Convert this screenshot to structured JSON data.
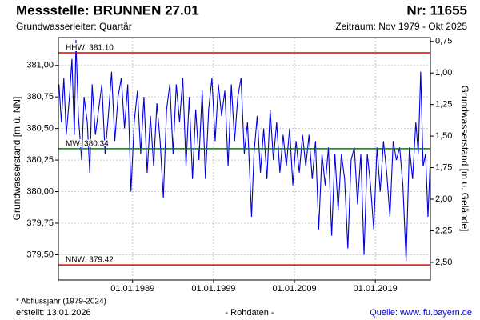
{
  "chart_data": {
    "type": "line",
    "title": "Messstelle: BRUNNEN 27.01",
    "number": "Nr: 11655",
    "subtitle": "Grundwasserleiter: Quartär",
    "period": "Zeitraum: Nov 1979 - Okt 2025",
    "ylabel": "Grundwasserstand [m ü. NN]",
    "y2label": "Grundwasserstand [m u. Gelände]",
    "footnote": "* Abflussjahr (1979-2024)",
    "created": "erstellt:  13.01.2026",
    "data_note": "- Rohdaten -",
    "source": "Quelle: www.lfu.bayern.de",
    "grid": true,
    "y2_inverted": true,
    "xlim": [
      1979.83,
      2025.8
    ],
    "xticks": [
      {
        "value": 1989,
        "label": "01.01.1989"
      },
      {
        "value": 1999,
        "label": "01.01.1999"
      },
      {
        "value": 2009,
        "label": "01.01.2009"
      },
      {
        "value": 2019,
        "label": "01.01.2019"
      }
    ],
    "ylim": [
      379.3,
      381.22
    ],
    "yticks": [
      {
        "value": 379.5,
        "label": "379,50"
      },
      {
        "value": 379.75,
        "label": "379,75"
      },
      {
        "value": 380,
        "label": "380,00"
      },
      {
        "value": 380.25,
        "label": "380,25"
      },
      {
        "value": 380.5,
        "label": "380,50"
      },
      {
        "value": 380.75,
        "label": "380,75"
      },
      {
        "value": 381,
        "label": "381,00"
      }
    ],
    "y2lim": [
      0.72,
      2.64
    ],
    "y2ticks": [
      {
        "value": 0.75,
        "label": "0,75"
      },
      {
        "value": 1,
        "label": "1,00"
      },
      {
        "value": 1.25,
        "label": "1,25"
      },
      {
        "value": 1.5,
        "label": "1,50"
      },
      {
        "value": 1.75,
        "label": "1,75"
      },
      {
        "value": 2,
        "label": "2,00"
      },
      {
        "value": 2.25,
        "label": "2,25"
      },
      {
        "value": 2.5,
        "label": "2,50"
      }
    ],
    "reference_lines": [
      {
        "label": "HHW: 381.10",
        "value": 381.1,
        "color": "#e00000"
      },
      {
        "label": "MW: 380.34",
        "value": 380.34,
        "color": "#008000"
      },
      {
        "label": "NNW: 379.42",
        "value": 379.42,
        "color": "#e00000"
      }
    ],
    "series": [
      {
        "color": "#0000dd",
        "x": [
          1979.9,
          1980.2,
          1980.5,
          1980.8,
          1981.2,
          1981.5,
          1981.8,
          1982.0,
          1982.3,
          1982.7,
          1983.0,
          1983.4,
          1983.7,
          1984.0,
          1984.4,
          1984.8,
          1985.2,
          1985.6,
          1986.0,
          1986.4,
          1986.8,
          1987.2,
          1987.6,
          1988.0,
          1988.4,
          1988.8,
          1989.2,
          1989.6,
          1990.0,
          1990.4,
          1990.8,
          1991.2,
          1991.6,
          1992.0,
          1992.4,
          1992.8,
          1993.2,
          1993.6,
          1994.0,
          1994.4,
          1994.8,
          1995.2,
          1995.6,
          1996.0,
          1996.4,
          1996.8,
          1997.2,
          1997.6,
          1998.0,
          1998.4,
          1998.8,
          1999.2,
          1999.6,
          2000.0,
          2000.4,
          2000.8,
          2001.2,
          2001.6,
          2002.0,
          2002.4,
          2002.8,
          2003.2,
          2003.7,
          2004.0,
          2004.4,
          2004.8,
          2005.2,
          2005.6,
          2006.0,
          2006.4,
          2006.8,
          2007.2,
          2007.6,
          2008.0,
          2008.4,
          2008.8,
          2009.2,
          2009.6,
          2010.0,
          2010.4,
          2010.8,
          2011.2,
          2011.6,
          2012.0,
          2012.4,
          2012.8,
          2013.2,
          2013.6,
          2014.0,
          2014.4,
          2014.8,
          2015.2,
          2015.6,
          2016.0,
          2016.4,
          2016.8,
          2017.2,
          2017.6,
          2018.0,
          2018.4,
          2018.8,
          2019.2,
          2019.6,
          2020.0,
          2020.4,
          2020.8,
          2021.2,
          2021.6,
          2022.0,
          2022.4,
          2022.8,
          2023.2,
          2023.6,
          2024.0,
          2024.3,
          2024.6,
          2024.9,
          2025.2,
          2025.5,
          2025.75
        ],
        "values": [
          380.85,
          380.55,
          380.9,
          380.45,
          380.75,
          381.05,
          380.45,
          381.2,
          380.6,
          380.25,
          380.75,
          380.55,
          380.15,
          380.85,
          380.45,
          380.65,
          380.85,
          380.3,
          380.6,
          380.95,
          380.4,
          380.75,
          380.9,
          380.5,
          380.85,
          380.0,
          380.55,
          380.8,
          380.3,
          380.75,
          380.15,
          380.6,
          380.2,
          380.7,
          380.4,
          379.95,
          380.65,
          380.85,
          380.3,
          380.85,
          380.55,
          380.9,
          380.2,
          380.75,
          380.1,
          380.65,
          380.25,
          380.8,
          380.1,
          380.65,
          380.9,
          380.4,
          380.85,
          380.6,
          380.8,
          380.2,
          380.85,
          380.4,
          380.75,
          380.9,
          380.3,
          380.55,
          379.8,
          380.3,
          380.6,
          380.15,
          380.5,
          380.1,
          380.65,
          380.25,
          380.55,
          380.15,
          380.45,
          380.2,
          380.5,
          380.05,
          380.4,
          380.15,
          380.45,
          380.2,
          380.45,
          380.1,
          380.4,
          379.7,
          380.3,
          380.05,
          380.35,
          379.65,
          380.3,
          379.85,
          380.3,
          380.1,
          379.55,
          380.25,
          380.35,
          379.9,
          380.3,
          379.5,
          380.3,
          380.05,
          379.7,
          380.35,
          380.0,
          380.4,
          380.15,
          379.8,
          380.4,
          380.25,
          380.35,
          380.05,
          379.45,
          380.35,
          380.1,
          380.55,
          380.3,
          380.95,
          380.2,
          380.3,
          379.8,
          380.2
        ]
      }
    ]
  }
}
